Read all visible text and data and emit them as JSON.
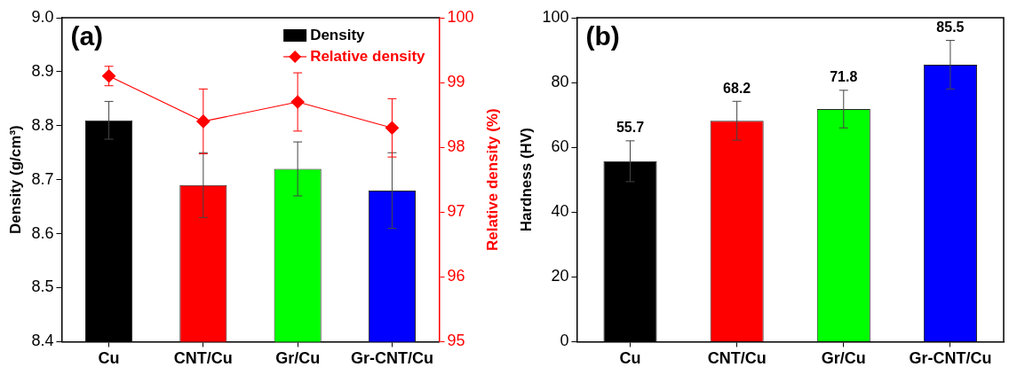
{
  "chart_data": [
    {
      "type": "bar",
      "categories": [
        "Cu",
        "CNT/Cu",
        "Gr/Cu",
        "Gr-CNT/Cu"
      ],
      "ylabel": "Density (g/cm³)",
      "y2label": "Relative density (%)",
      "ylim": [
        8.4,
        9.0
      ],
      "yticks": [
        8.4,
        8.5,
        8.6,
        8.7,
        8.8,
        8.9,
        {
          "value": 9,
          "label": "9.0"
        }
      ],
      "y2lim": [
        95,
        100
      ],
      "y2ticks": [
        95,
        96,
        97,
        98,
        99,
        100
      ],
      "legend": "top right",
      "grid": false,
      "annotations": [
        "(a)"
      ],
      "series": [
        {
          "name": "Density",
          "colors": [
            "#000000",
            "#ff0000",
            "#00ff00",
            "#0000ff"
          ],
          "values": [
            8.81,
            8.69,
            8.72,
            8.68
          ],
          "errors": [
            0.035,
            0.06,
            0.05,
            0.07
          ]
        },
        {
          "name": "Relative density",
          "type": "line",
          "axis": "y2",
          "color": "#ff0000",
          "marker": "diamond",
          "line_style": "solid",
          "values": [
            99.1,
            98.4,
            98.7,
            98.3
          ],
          "errors": [
            0.15,
            0.5,
            0.45,
            0.45
          ]
        }
      ]
    },
    {
      "type": "bar",
      "categories": [
        "Cu",
        "CNT/Cu",
        "Gr/Cu",
        "Gr-CNT/Cu"
      ],
      "ylabel": "Hardness (HV)",
      "ylim": [
        0,
        100
      ],
      "yticks": [
        0,
        20,
        40,
        60,
        80,
        100
      ],
      "legend": false,
      "grid": false,
      "data_labels": true,
      "annotations": [
        "(b)"
      ],
      "series": [
        {
          "colors": [
            "#000000",
            "#ff0000",
            "#00ff00",
            "#0000ff"
          ],
          "values": [
            55.7,
            68.2,
            71.8,
            85.5
          ],
          "errors": [
            6.3,
            6,
            5.8,
            7.5
          ]
        }
      ]
    }
  ]
}
